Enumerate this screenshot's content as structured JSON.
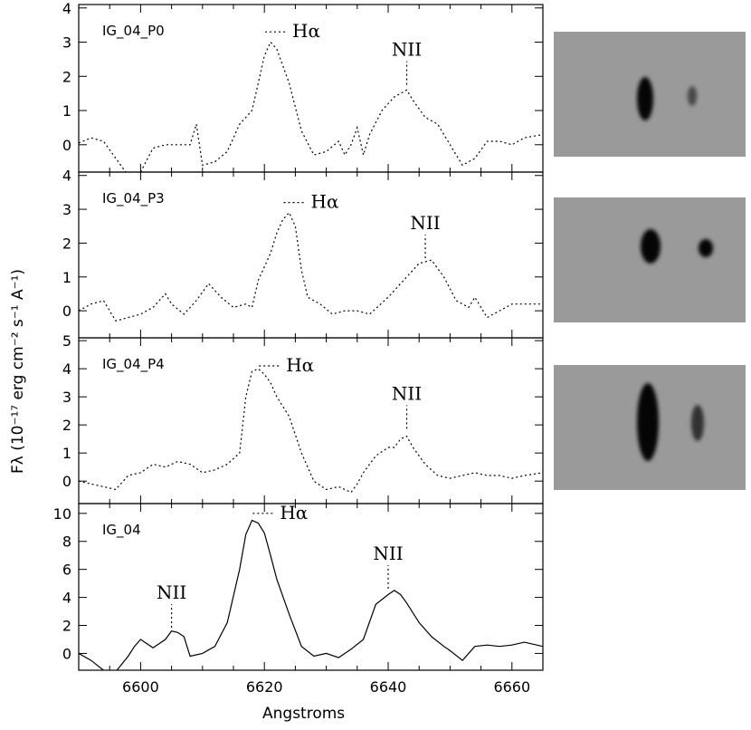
{
  "figure": {
    "ylabel": "Fλ (10⁻¹⁷ erg cm⁻² s⁻¹ A⁻¹)",
    "xlabel": "Angstroms"
  },
  "chart_data": [
    {
      "type": "line",
      "panel_label": "IG_04_P0",
      "line_style": "dotted",
      "xlim": [
        6590,
        6665
      ],
      "ylim": [
        -0.8,
        4.1
      ],
      "yticks": [
        0,
        1,
        2,
        3,
        4
      ],
      "annotations": [
        {
          "text": "Hα",
          "x": 6621,
          "y": 3.3
        },
        {
          "text": "NII",
          "x": 6643,
          "y": 1.7
        }
      ],
      "x": [
        6590,
        6592,
        6594,
        6596,
        6598,
        6600,
        6602,
        6604,
        6606,
        6608,
        6609,
        6610,
        6612,
        6614,
        6616,
        6617,
        6618,
        6619,
        6620,
        6621,
        6622,
        6624,
        6626,
        6628,
        6630,
        6632,
        6633,
        6634,
        6635,
        6636,
        6637,
        6639,
        6641,
        6643,
        6644,
        6646,
        6648,
        6650,
        6652,
        6654,
        6656,
        6658,
        6660,
        6662,
        6665
      ],
      "y": [
        0.05,
        0.2,
        0.1,
        -0.4,
        -0.9,
        -0.8,
        -0.1,
        0.0,
        0.0,
        0.0,
        0.6,
        -0.6,
        -0.5,
        -0.2,
        0.6,
        0.8,
        1.0,
        1.8,
        2.6,
        3.0,
        2.8,
        1.8,
        0.4,
        -0.3,
        -0.2,
        0.1,
        -0.3,
        0.0,
        0.5,
        -0.3,
        0.3,
        1.0,
        1.4,
        1.6,
        1.3,
        0.8,
        0.6,
        0.0,
        -0.6,
        -0.4,
        0.1,
        0.1,
        0.0,
        0.2,
        0.3
      ]
    },
    {
      "type": "line",
      "panel_label": "IG_04_P3",
      "line_style": "dotted",
      "xlim": [
        6590,
        6665
      ],
      "ylim": [
        -0.8,
        4.1
      ],
      "yticks": [
        0,
        1,
        2,
        3,
        4
      ],
      "annotations": [
        {
          "text": "Hα",
          "x": 6624,
          "y": 3.2
        },
        {
          "text": "NII",
          "x": 6646,
          "y": 1.5
        }
      ],
      "x": [
        6590,
        6592,
        6594,
        6596,
        6598,
        6600,
        6602,
        6604,
        6605,
        6607,
        6609,
        6611,
        6613,
        6615,
        6617,
        6618,
        6619,
        6620,
        6621,
        6622,
        6623,
        6624,
        6625,
        6626,
        6627,
        6629,
        6631,
        6633,
        6635,
        6637,
        6640,
        6643,
        6645,
        6647,
        6649,
        6651,
        6653,
        6654,
        6656,
        6658,
        6660,
        6662,
        6665
      ],
      "y": [
        0.0,
        0.2,
        0.3,
        -0.3,
        -0.2,
        -0.1,
        0.1,
        0.5,
        0.2,
        -0.1,
        0.3,
        0.8,
        0.4,
        0.1,
        0.2,
        0.1,
        0.9,
        1.3,
        1.7,
        2.3,
        2.7,
        2.9,
        2.5,
        1.2,
        0.4,
        0.2,
        -0.1,
        0.0,
        0.0,
        -0.1,
        0.4,
        1.0,
        1.4,
        1.5,
        1.0,
        0.3,
        0.1,
        0.4,
        -0.2,
        0.0,
        0.2,
        0.2,
        0.2
      ]
    },
    {
      "type": "line",
      "panel_label": "IG_04_P4",
      "line_style": "dotted",
      "xlim": [
        6590,
        6665
      ],
      "ylim": [
        -0.8,
        5.1
      ],
      "yticks": [
        0,
        1,
        2,
        3,
        4,
        5
      ],
      "annotations": [
        {
          "text": "Hα",
          "x": 6620,
          "y": 4.1
        },
        {
          "text": "NII",
          "x": 6643,
          "y": 1.8
        }
      ],
      "x": [
        6590,
        6592,
        6594,
        6596,
        6598,
        6600,
        6602,
        6604,
        6606,
        6608,
        6610,
        6612,
        6614,
        6616,
        6617,
        6618,
        6619,
        6620,
        6621,
        6622,
        6624,
        6626,
        6628,
        6630,
        6632,
        6634,
        6635,
        6636,
        6638,
        6640,
        6641,
        6642,
        6643,
        6644,
        6646,
        6648,
        6650,
        6652,
        6654,
        6656,
        6658,
        6660,
        6662,
        6665
      ],
      "y": [
        0.0,
        -0.1,
        -0.2,
        -0.3,
        0.2,
        0.3,
        0.6,
        0.5,
        0.7,
        0.6,
        0.3,
        0.4,
        0.6,
        1.0,
        3.0,
        3.9,
        4.0,
        3.8,
        3.5,
        3.0,
        2.3,
        1.0,
        0.0,
        -0.3,
        -0.2,
        -0.4,
        -0.1,
        0.3,
        0.9,
        1.2,
        1.2,
        1.5,
        1.6,
        1.2,
        0.6,
        0.2,
        0.1,
        0.2,
        0.3,
        0.2,
        0.2,
        0.1,
        0.2,
        0.3
      ]
    },
    {
      "type": "line",
      "panel_label": "IG_04",
      "line_style": "solid",
      "xlim": [
        6590,
        6665
      ],
      "ylim": [
        -1.2,
        10.7
      ],
      "yticks": [
        0,
        2,
        4,
        6,
        8,
        10
      ],
      "xticks": [
        6600,
        6620,
        6640,
        6660
      ],
      "annotations": [
        {
          "text": "Hα",
          "x": 6619,
          "y": 10
        },
        {
          "text": "NII",
          "x": 6605,
          "y": 1.7
        },
        {
          "text": "NII",
          "x": 6640,
          "y": 4.5
        }
      ],
      "x": [
        6590,
        6592,
        6594,
        6596,
        6598,
        6599,
        6600,
        6602,
        6604,
        6605,
        6606,
        6607,
        6608,
        6610,
        6612,
        6614,
        6616,
        6617,
        6618,
        6619,
        6620,
        6621,
        6622,
        6624,
        6626,
        6628,
        6630,
        6632,
        6634,
        6636,
        6638,
        6640,
        6641,
        6642,
        6643,
        6645,
        6647,
        6649,
        6650,
        6652,
        6654,
        6656,
        6658,
        6660,
        6662,
        6665
      ],
      "y": [
        0.0,
        -0.5,
        -1.2,
        -1.3,
        -0.2,
        0.5,
        1.0,
        0.4,
        1.0,
        1.6,
        1.5,
        1.2,
        -0.2,
        0.0,
        0.5,
        2.2,
        6.0,
        8.5,
        9.5,
        9.3,
        8.6,
        7.0,
        5.3,
        2.8,
        0.5,
        -0.2,
        0.0,
        -0.3,
        0.3,
        1.0,
        3.5,
        4.2,
        4.5,
        4.2,
        3.6,
        2.2,
        1.2,
        0.5,
        0.2,
        -0.5,
        0.5,
        0.6,
        0.5,
        0.6,
        0.8,
        0.5
      ]
    }
  ]
}
